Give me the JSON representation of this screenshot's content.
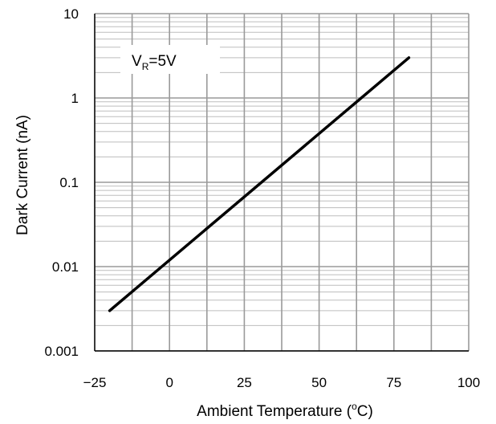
{
  "chart_data": {
    "type": "line",
    "title": "",
    "xlabel": "Ambient Temperature",
    "xlabel_unit_open": " (",
    "xlabel_unit_degree": "o",
    "xlabel_unit_close": "C)",
    "ylabel": "Dark Current  (nA)",
    "xlim": [
      -25,
      100
    ],
    "ylim": [
      0.001,
      10
    ],
    "yscale": "log",
    "x_ticks": [
      -25,
      0,
      25,
      50,
      75,
      100
    ],
    "x_tick_labels": [
      "−25",
      "0",
      "25",
      "50",
      "75",
      "100"
    ],
    "y_ticks": [
      0.001,
      0.01,
      0.1,
      1,
      10
    ],
    "y_tick_labels": [
      "0.001",
      "0.01",
      "0.1",
      "1",
      "10"
    ],
    "grid": true,
    "annotation": {
      "main": "V",
      "sub": "R",
      "rest": "=5V"
    },
    "series": [
      {
        "x": [
          -20,
          80
        ],
        "y": [
          0.003,
          3
        ]
      }
    ]
  },
  "colors": {
    "line": "#000000",
    "grid_major": "#9a9a9a",
    "grid_minor": "#bdbdbd",
    "axis": "#000000"
  }
}
